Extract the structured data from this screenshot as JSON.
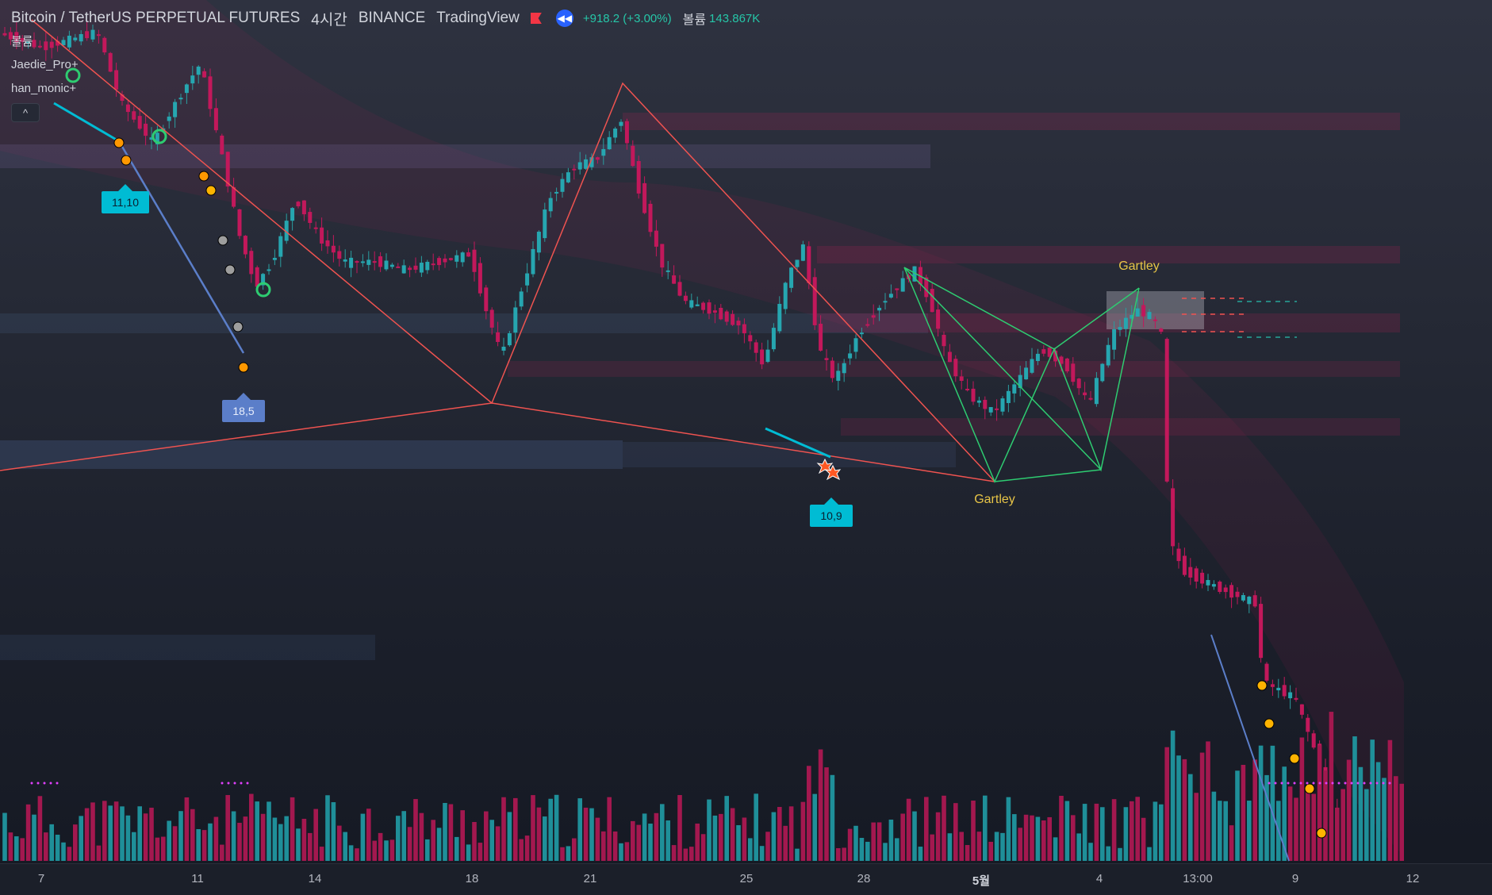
{
  "header": {
    "symbol": "Bitcoin / TetherUS PERPETUAL FUTURES",
    "interval": "4시간",
    "exchange": "BINANCE",
    "source": "TradingView",
    "change": "+918.2 (+3.00%)",
    "volume_label": "볼륨",
    "volume_value": "143.867K",
    "colors": {
      "up": "#26a69a",
      "down": "#ef5350"
    }
  },
  "indicators": [
    {
      "label": "볼륨"
    },
    {
      "label": "Jaedie_Pro+"
    },
    {
      "label": "han_monic+"
    }
  ],
  "collapse_label": "^",
  "annotations": {
    "labels": [
      "11,10",
      "18,5",
      "10,9"
    ],
    "patterns": [
      "Gartley",
      "Gartley"
    ]
  },
  "time_axis": {
    "ticks": [
      "7",
      "11",
      "14",
      "18",
      "21",
      "25",
      "28",
      "5월",
      "4",
      "13:00",
      "9",
      "12"
    ]
  },
  "icons": [
    "reward-medal-icon",
    "explosion-icon",
    "circle-signal-icon",
    "red-flag-icon",
    "rewind-icon",
    "collapse-chevron-icon"
  ]
}
